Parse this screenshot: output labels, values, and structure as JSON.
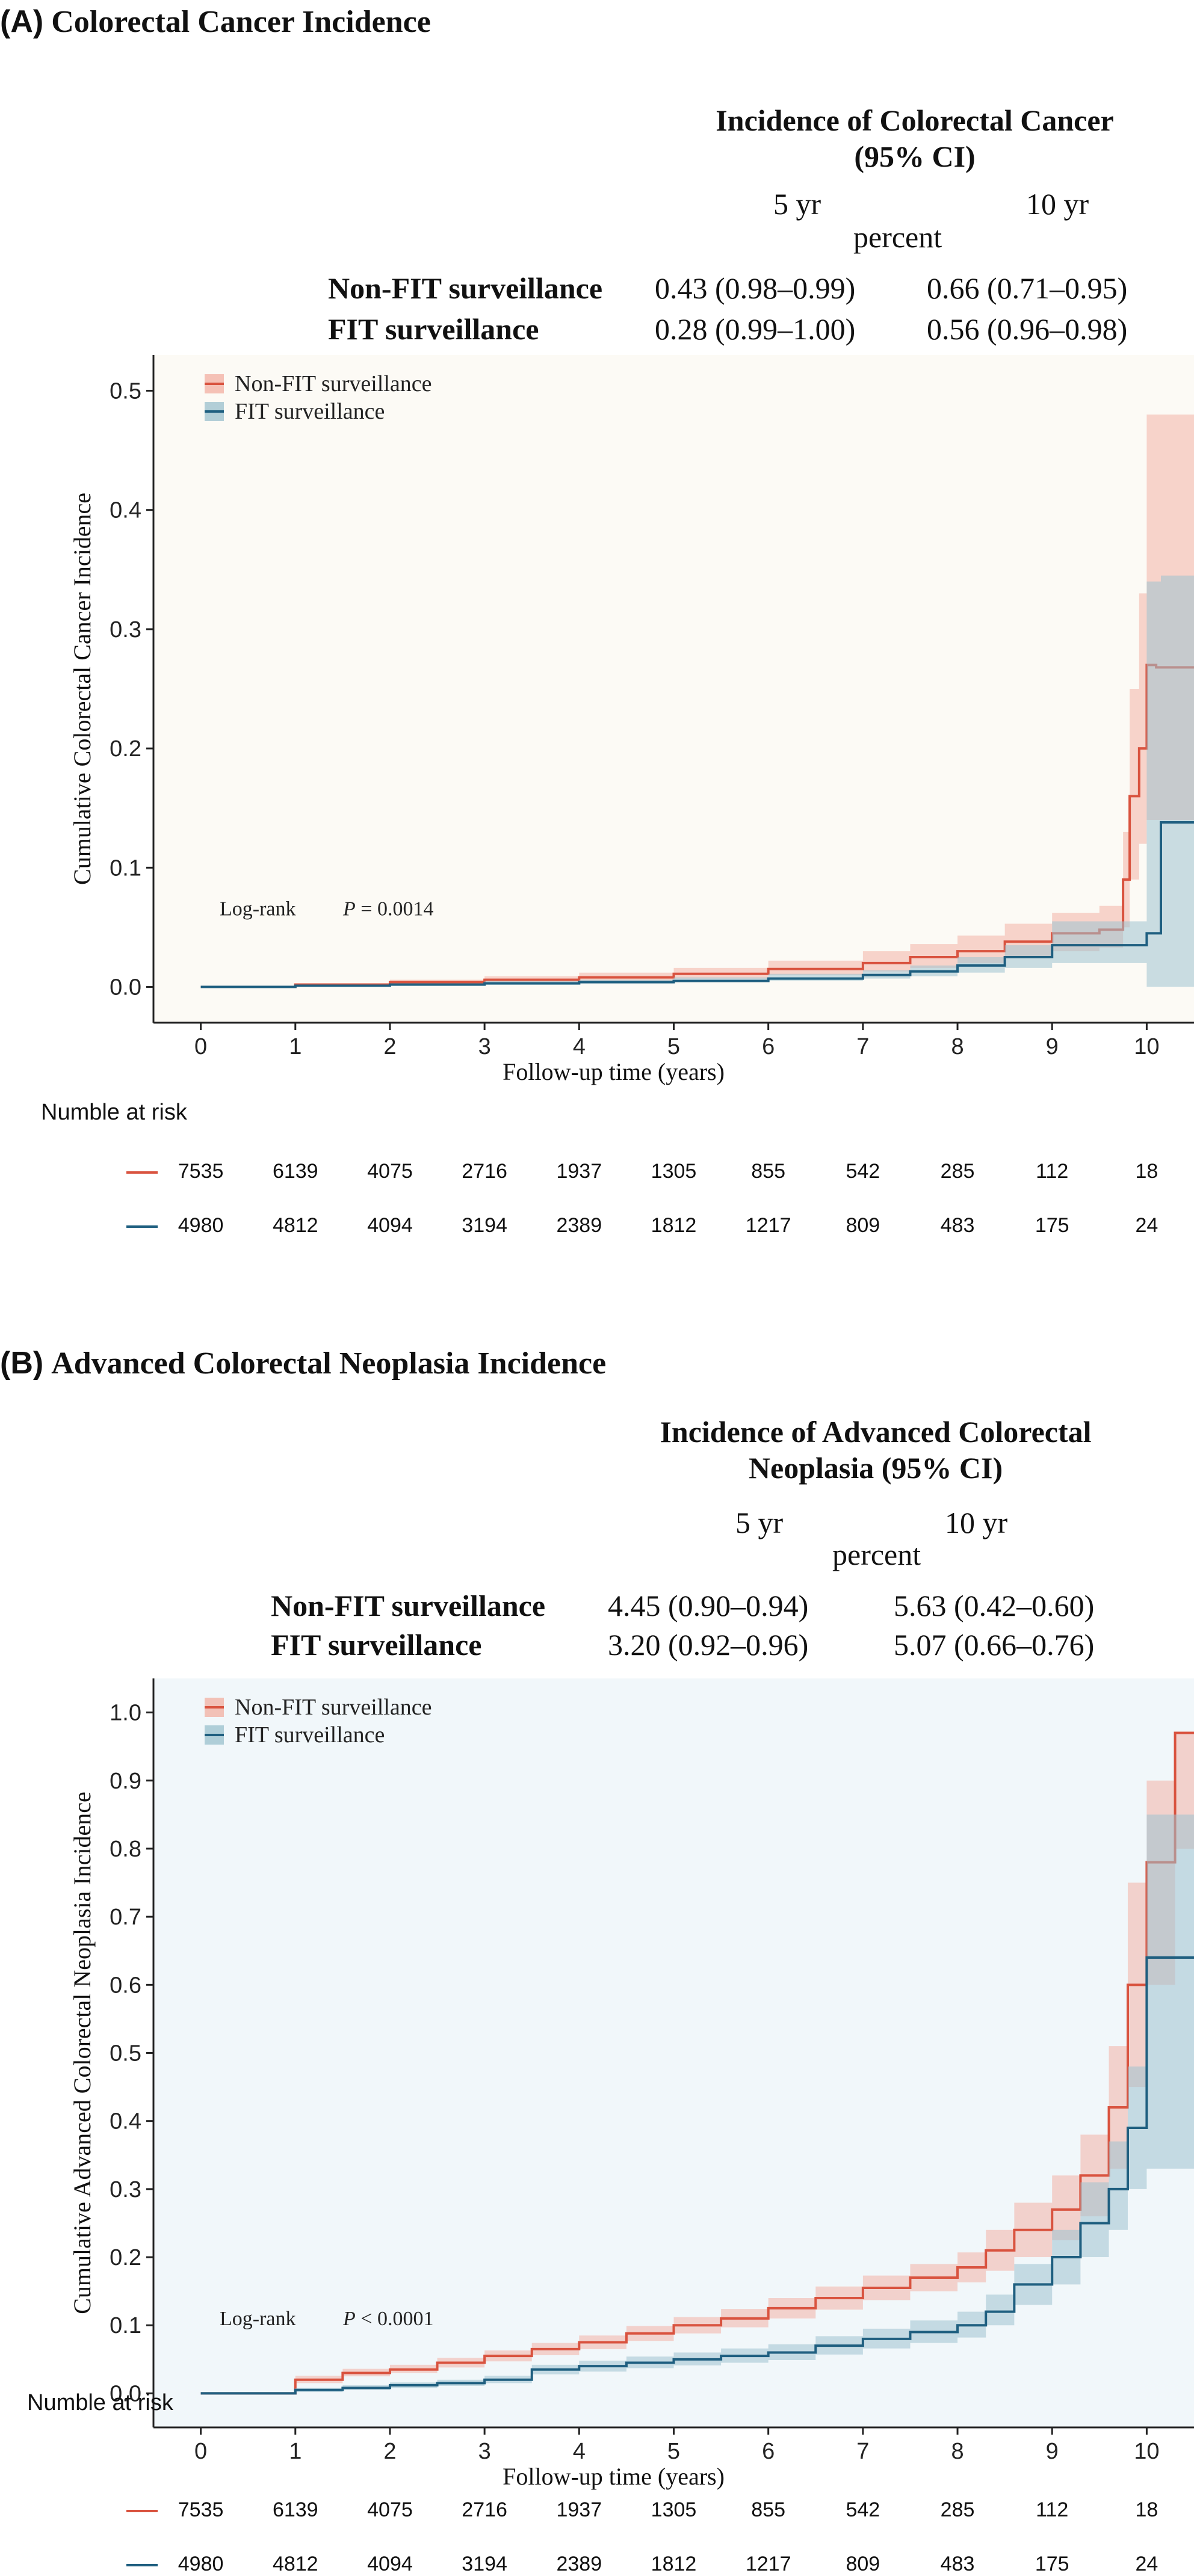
{
  "panels": [
    {
      "tag": "(A)",
      "title": "Colorectal Cancer Incidence",
      "table": {
        "heading": "Incidence of Colorectal Cancer\n(95% CI)",
        "col5": "5 yr",
        "col10": "10 yr",
        "unit": "percent",
        "rows": [
          {
            "label": "Non-FIT surveillance",
            "v5": "0.43 (0.98–0.99)",
            "v10": "0.66 (0.71–0.95)"
          },
          {
            "label": "FIT surveillance",
            "v5": "0.28 (0.99–1.00)",
            "v10": "0.56 (0.96–0.98)"
          }
        ]
      },
      "risk": {
        "title": "Numble at risk",
        "rows": [
          {
            "color": "#d9533f",
            "values": [
              "7535",
              "6139",
              "4075",
              "2716",
              "1937",
              "1305",
              "855",
              "542",
              "285",
              "112",
              "18"
            ]
          },
          {
            "color": "#1f5f80",
            "values": [
              "4980",
              "4812",
              "4094",
              "3194",
              "2389",
              "1812",
              "1217",
              "809",
              "483",
              "175",
              "24"
            ]
          }
        ]
      }
    },
    {
      "tag": "(B)",
      "title": "Advanced Colorectal Neoplasia Incidence",
      "table": {
        "heading": "Incidence of Advanced Colorectal\nNeoplasia (95% CI)",
        "col5": "5 yr",
        "col10": "10 yr",
        "unit": "percent",
        "rows": [
          {
            "label": "Non-FIT surveillance",
            "v5": "4.45 (0.90–0.94)",
            "v10": "5.63 (0.42–0.60)"
          },
          {
            "label": "FIT surveillance",
            "v5": "3.20 (0.92–0.96)",
            "v10": "5.07 (0.66–0.76)"
          }
        ]
      },
      "risk": {
        "title": "Numble at risk",
        "rows": [
          {
            "color": "#d9533f",
            "values": [
              "7535",
              "6139",
              "4075",
              "2716",
              "1937",
              "1305",
              "855",
              "542",
              "285",
              "112",
              "18"
            ]
          },
          {
            "color": "#1f5f80",
            "values": [
              "4980",
              "4812",
              "4094",
              "3194",
              "2389",
              "1812",
              "1217",
              "809",
              "483",
              "175",
              "24"
            ]
          }
        ]
      }
    }
  ],
  "chart_data": [
    {
      "type": "line",
      "step": true,
      "background": "#fcfaf5",
      "xlabel": "Follow-up time (years)",
      "ylabel": "Cumulative Colorectal Cancer Incidence",
      "xlim": [
        -0.5,
        10.5
      ],
      "ylim": [
        -0.03,
        0.53
      ],
      "xticks": [
        0,
        1,
        2,
        3,
        4,
        5,
        6,
        7,
        8,
        9,
        10
      ],
      "yticks": [
        0.0,
        0.1,
        0.2,
        0.3,
        0.4,
        0.5
      ],
      "ytick_labels": [
        "0.0",
        "0.1",
        "0.2",
        "0.3",
        "0.4",
        "0.5"
      ],
      "annotation": {
        "label": "Log-rank",
        "p_prefix": "P",
        "p_text": " = 0.0014",
        "x": 0.2,
        "y": 0.06
      },
      "series": [
        {
          "name": "Non-FIT surveillance",
          "color": "#d9533f",
          "band_color": "#f2b3a6",
          "x": [
            0,
            1,
            2,
            3,
            4,
            5,
            6,
            7,
            7.5,
            8,
            8.5,
            9,
            9.5,
            9.75,
            9.82,
            9.92,
            10.0,
            10.1,
            10.5
          ],
          "y": [
            0,
            0.002,
            0.004,
            0.006,
            0.008,
            0.011,
            0.015,
            0.02,
            0.025,
            0.03,
            0.038,
            0.045,
            0.048,
            0.09,
            0.16,
            0.2,
            0.27,
            0.268,
            0.268
          ],
          "lower": [
            0,
            0.001,
            0.002,
            0.003,
            0.005,
            0.007,
            0.01,
            0.013,
            0.016,
            0.02,
            0.025,
            0.03,
            0.033,
            0.05,
            0.09,
            0.12,
            0.14,
            0.14,
            0.14
          ],
          "upper": [
            0,
            0.003,
            0.006,
            0.009,
            0.012,
            0.016,
            0.022,
            0.03,
            0.036,
            0.043,
            0.053,
            0.062,
            0.068,
            0.13,
            0.25,
            0.33,
            0.48,
            0.48,
            0.48
          ]
        },
        {
          "name": "FIT surveillance",
          "color": "#1f5f80",
          "band_color": "#9fc3cf",
          "x": [
            0,
            1,
            2,
            3,
            4,
            5,
            6,
            7,
            7.5,
            8,
            8.5,
            9,
            9.5,
            10.0,
            10.15,
            10.5
          ],
          "y": [
            0,
            0.001,
            0.002,
            0.003,
            0.004,
            0.005,
            0.007,
            0.01,
            0.013,
            0.018,
            0.025,
            0.035,
            0.035,
            0.045,
            0.138,
            0.138
          ],
          "lower": [
            0,
            0.0,
            0.001,
            0.002,
            0.003,
            0.004,
            0.005,
            0.007,
            0.009,
            0.012,
            0.016,
            0.02,
            0.02,
            0.0,
            0.0,
            0.0
          ],
          "upper": [
            0,
            0.002,
            0.003,
            0.005,
            0.006,
            0.008,
            0.011,
            0.014,
            0.018,
            0.025,
            0.035,
            0.055,
            0.055,
            0.34,
            0.345,
            0.345
          ]
        }
      ]
    },
    {
      "type": "line",
      "step": true,
      "background": "#f1f7fa",
      "xlabel": "Follow-up time (years)",
      "ylabel": "Cumulative Advanced Colorectal Neoplasia Incidence",
      "xlim": [
        -0.5,
        10.5
      ],
      "ylim": [
        -0.05,
        1.05
      ],
      "xticks": [
        0,
        1,
        2,
        3,
        4,
        5,
        6,
        7,
        8,
        9,
        10
      ],
      "yticks": [
        0.0,
        0.1,
        0.2,
        0.3,
        0.4,
        0.5,
        0.6,
        0.7,
        0.8,
        0.9,
        1.0
      ],
      "ytick_labels": [
        "0.0",
        "0.1",
        "0.2",
        "0.3",
        "0.4",
        "0.5",
        "0.6",
        "0.7",
        "0.8",
        "0.9",
        "1.0"
      ],
      "annotation": {
        "label": "Log-rank",
        "p_prefix": "P",
        "p_text": " < 0.0001",
        "x": 0.2,
        "y": 0.1
      },
      "series": [
        {
          "name": "Non-FIT surveillance",
          "color": "#d9533f",
          "band_color": "#f2b3a6",
          "x": [
            0,
            0.5,
            1,
            1.5,
            2,
            2.5,
            3,
            3.5,
            4,
            4.5,
            5,
            5.5,
            6,
            6.5,
            7,
            7.5,
            8,
            8.3,
            8.6,
            9,
            9.3,
            9.6,
            9.8,
            10.0,
            10.3,
            10.5
          ],
          "y": [
            0,
            0.0,
            0.02,
            0.03,
            0.035,
            0.045,
            0.055,
            0.065,
            0.075,
            0.088,
            0.1,
            0.11,
            0.125,
            0.14,
            0.155,
            0.17,
            0.185,
            0.21,
            0.24,
            0.27,
            0.32,
            0.42,
            0.6,
            0.78,
            0.97,
            0.97
          ],
          "lower": [
            0,
            0.0,
            0.015,
            0.025,
            0.03,
            0.038,
            0.047,
            0.056,
            0.065,
            0.077,
            0.088,
            0.097,
            0.11,
            0.123,
            0.137,
            0.15,
            0.163,
            0.18,
            0.2,
            0.225,
            0.26,
            0.33,
            0.45,
            0.6,
            0.8,
            0.8
          ],
          "upper": [
            0,
            0.0,
            0.026,
            0.036,
            0.042,
            0.052,
            0.063,
            0.074,
            0.085,
            0.099,
            0.112,
            0.124,
            0.14,
            0.157,
            0.173,
            0.19,
            0.207,
            0.24,
            0.28,
            0.32,
            0.38,
            0.51,
            0.75,
            0.9,
            0.97,
            0.97
          ]
        },
        {
          "name": "FIT surveillance",
          "color": "#1f5f80",
          "band_color": "#9fc3cf",
          "x": [
            0,
            0.5,
            1,
            1.5,
            2,
            2.5,
            3,
            3.5,
            4,
            4.5,
            5,
            5.5,
            6,
            6.5,
            7,
            7.5,
            8,
            8.3,
            8.6,
            9,
            9.3,
            9.6,
            9.8,
            10.0,
            10.5
          ],
          "y": [
            0,
            0.0,
            0.005,
            0.008,
            0.012,
            0.015,
            0.02,
            0.035,
            0.04,
            0.045,
            0.05,
            0.055,
            0.06,
            0.07,
            0.08,
            0.09,
            0.1,
            0.12,
            0.16,
            0.2,
            0.25,
            0.3,
            0.39,
            0.64,
            0.64
          ],
          "lower": [
            0,
            0.0,
            0.002,
            0.005,
            0.008,
            0.011,
            0.015,
            0.028,
            0.032,
            0.037,
            0.041,
            0.045,
            0.049,
            0.057,
            0.066,
            0.074,
            0.082,
            0.1,
            0.13,
            0.16,
            0.2,
            0.24,
            0.3,
            0.33,
            0.33
          ],
          "upper": [
            0,
            0.0,
            0.008,
            0.012,
            0.016,
            0.02,
            0.026,
            0.042,
            0.048,
            0.054,
            0.06,
            0.066,
            0.072,
            0.084,
            0.095,
            0.107,
            0.12,
            0.145,
            0.19,
            0.24,
            0.31,
            0.37,
            0.48,
            0.85,
            0.85
          ]
        }
      ]
    }
  ]
}
